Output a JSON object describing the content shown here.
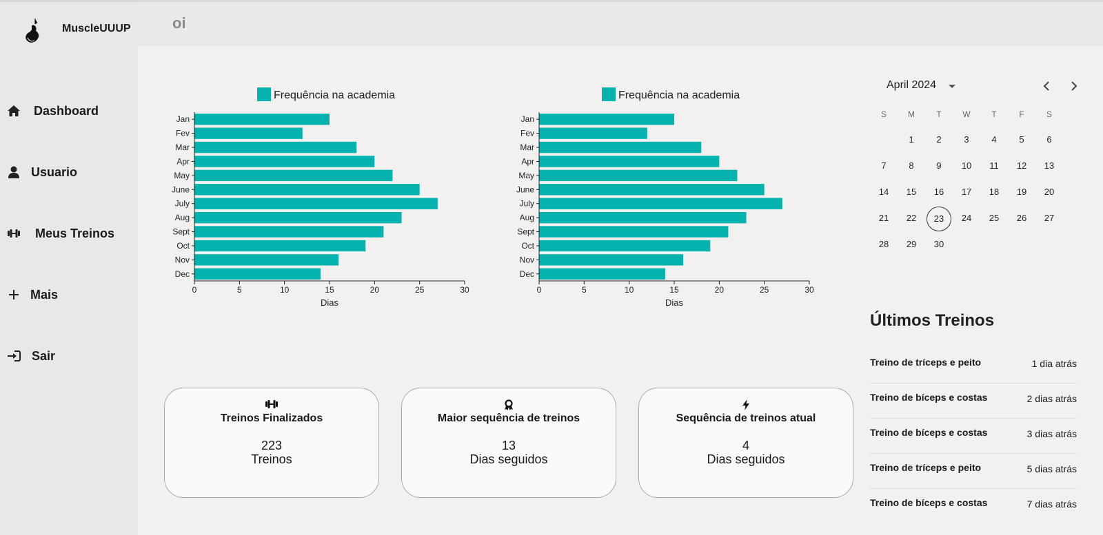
{
  "app": {
    "name": "MuscleUUUP"
  },
  "header": {
    "title": "oi"
  },
  "sidebar": {
    "items": [
      {
        "label": "Dashboard",
        "icon": "home-icon"
      },
      {
        "label": "Usuario",
        "icon": "user-icon"
      },
      {
        "label": "Meus Treinos",
        "icon": "dumbbell-icon"
      },
      {
        "label": "Mais",
        "icon": "plus-icon"
      },
      {
        "label": "Sair",
        "icon": "sign-in-icon"
      }
    ]
  },
  "chart_data": [
    {
      "type": "bar",
      "orientation": "horizontal",
      "categories": [
        "Jan",
        "Fev",
        "Mar",
        "Apr",
        "May",
        "June",
        "July",
        "Aug",
        "Sept",
        "Oct",
        "Nov",
        "Dec"
      ],
      "series": [
        {
          "name": "Frequência na academia",
          "values": [
            15,
            12,
            18,
            20,
            22,
            25,
            27,
            23,
            21,
            19,
            16,
            14
          ]
        }
      ],
      "xlabel": "Dias",
      "xlim": [
        0,
        30
      ],
      "xticks": [
        0,
        5,
        10,
        15,
        20,
        25,
        30
      ],
      "legend": "top",
      "color": "#05b3ae"
    },
    {
      "type": "bar",
      "orientation": "horizontal",
      "categories": [
        "Jan",
        "Fev",
        "Mar",
        "Apr",
        "May",
        "June",
        "July",
        "Aug",
        "Sept",
        "Oct",
        "Nov",
        "Dec"
      ],
      "series": [
        {
          "name": "Frequência na academia",
          "values": [
            15,
            12,
            18,
            20,
            22,
            25,
            27,
            23,
            21,
            19,
            16,
            14
          ]
        }
      ],
      "xlabel": "Dias",
      "xlim": [
        0,
        30
      ],
      "xticks": [
        0,
        5,
        10,
        15,
        20,
        25,
        30
      ],
      "legend": "top",
      "color": "#05b3ae"
    }
  ],
  "stats": [
    {
      "icon": "dumbbell-icon",
      "title": "Treinos Finalizados",
      "value": "223",
      "unit": "Treinos"
    },
    {
      "icon": "award-icon",
      "title": "Maior sequência de treinos",
      "value": "13",
      "unit": "Dias seguidos"
    },
    {
      "icon": "bolt-icon",
      "title": "Sequência de treinos atual",
      "value": "4",
      "unit": "Dias seguidos"
    }
  ],
  "calendar": {
    "month_label": "April 2024",
    "weekdays": [
      "S",
      "M",
      "T",
      "W",
      "T",
      "F",
      "S"
    ],
    "first_weekday": 1,
    "days_in_month": 30,
    "selected_day": 23
  },
  "recent": {
    "title": "Últimos Treinos",
    "items": [
      {
        "name": "Treino de tríceps e peito",
        "time": "1 dia atrás"
      },
      {
        "name": "Treino de bíceps e costas",
        "time": "2 dias atrás"
      },
      {
        "name": "Treino de bíceps e costas",
        "time": "3 dias atrás"
      },
      {
        "name": "Treino de tríceps e peito",
        "time": "5 dias atrás"
      },
      {
        "name": "Treino de bíceps e costas",
        "time": "7 dias atrás"
      }
    ]
  }
}
